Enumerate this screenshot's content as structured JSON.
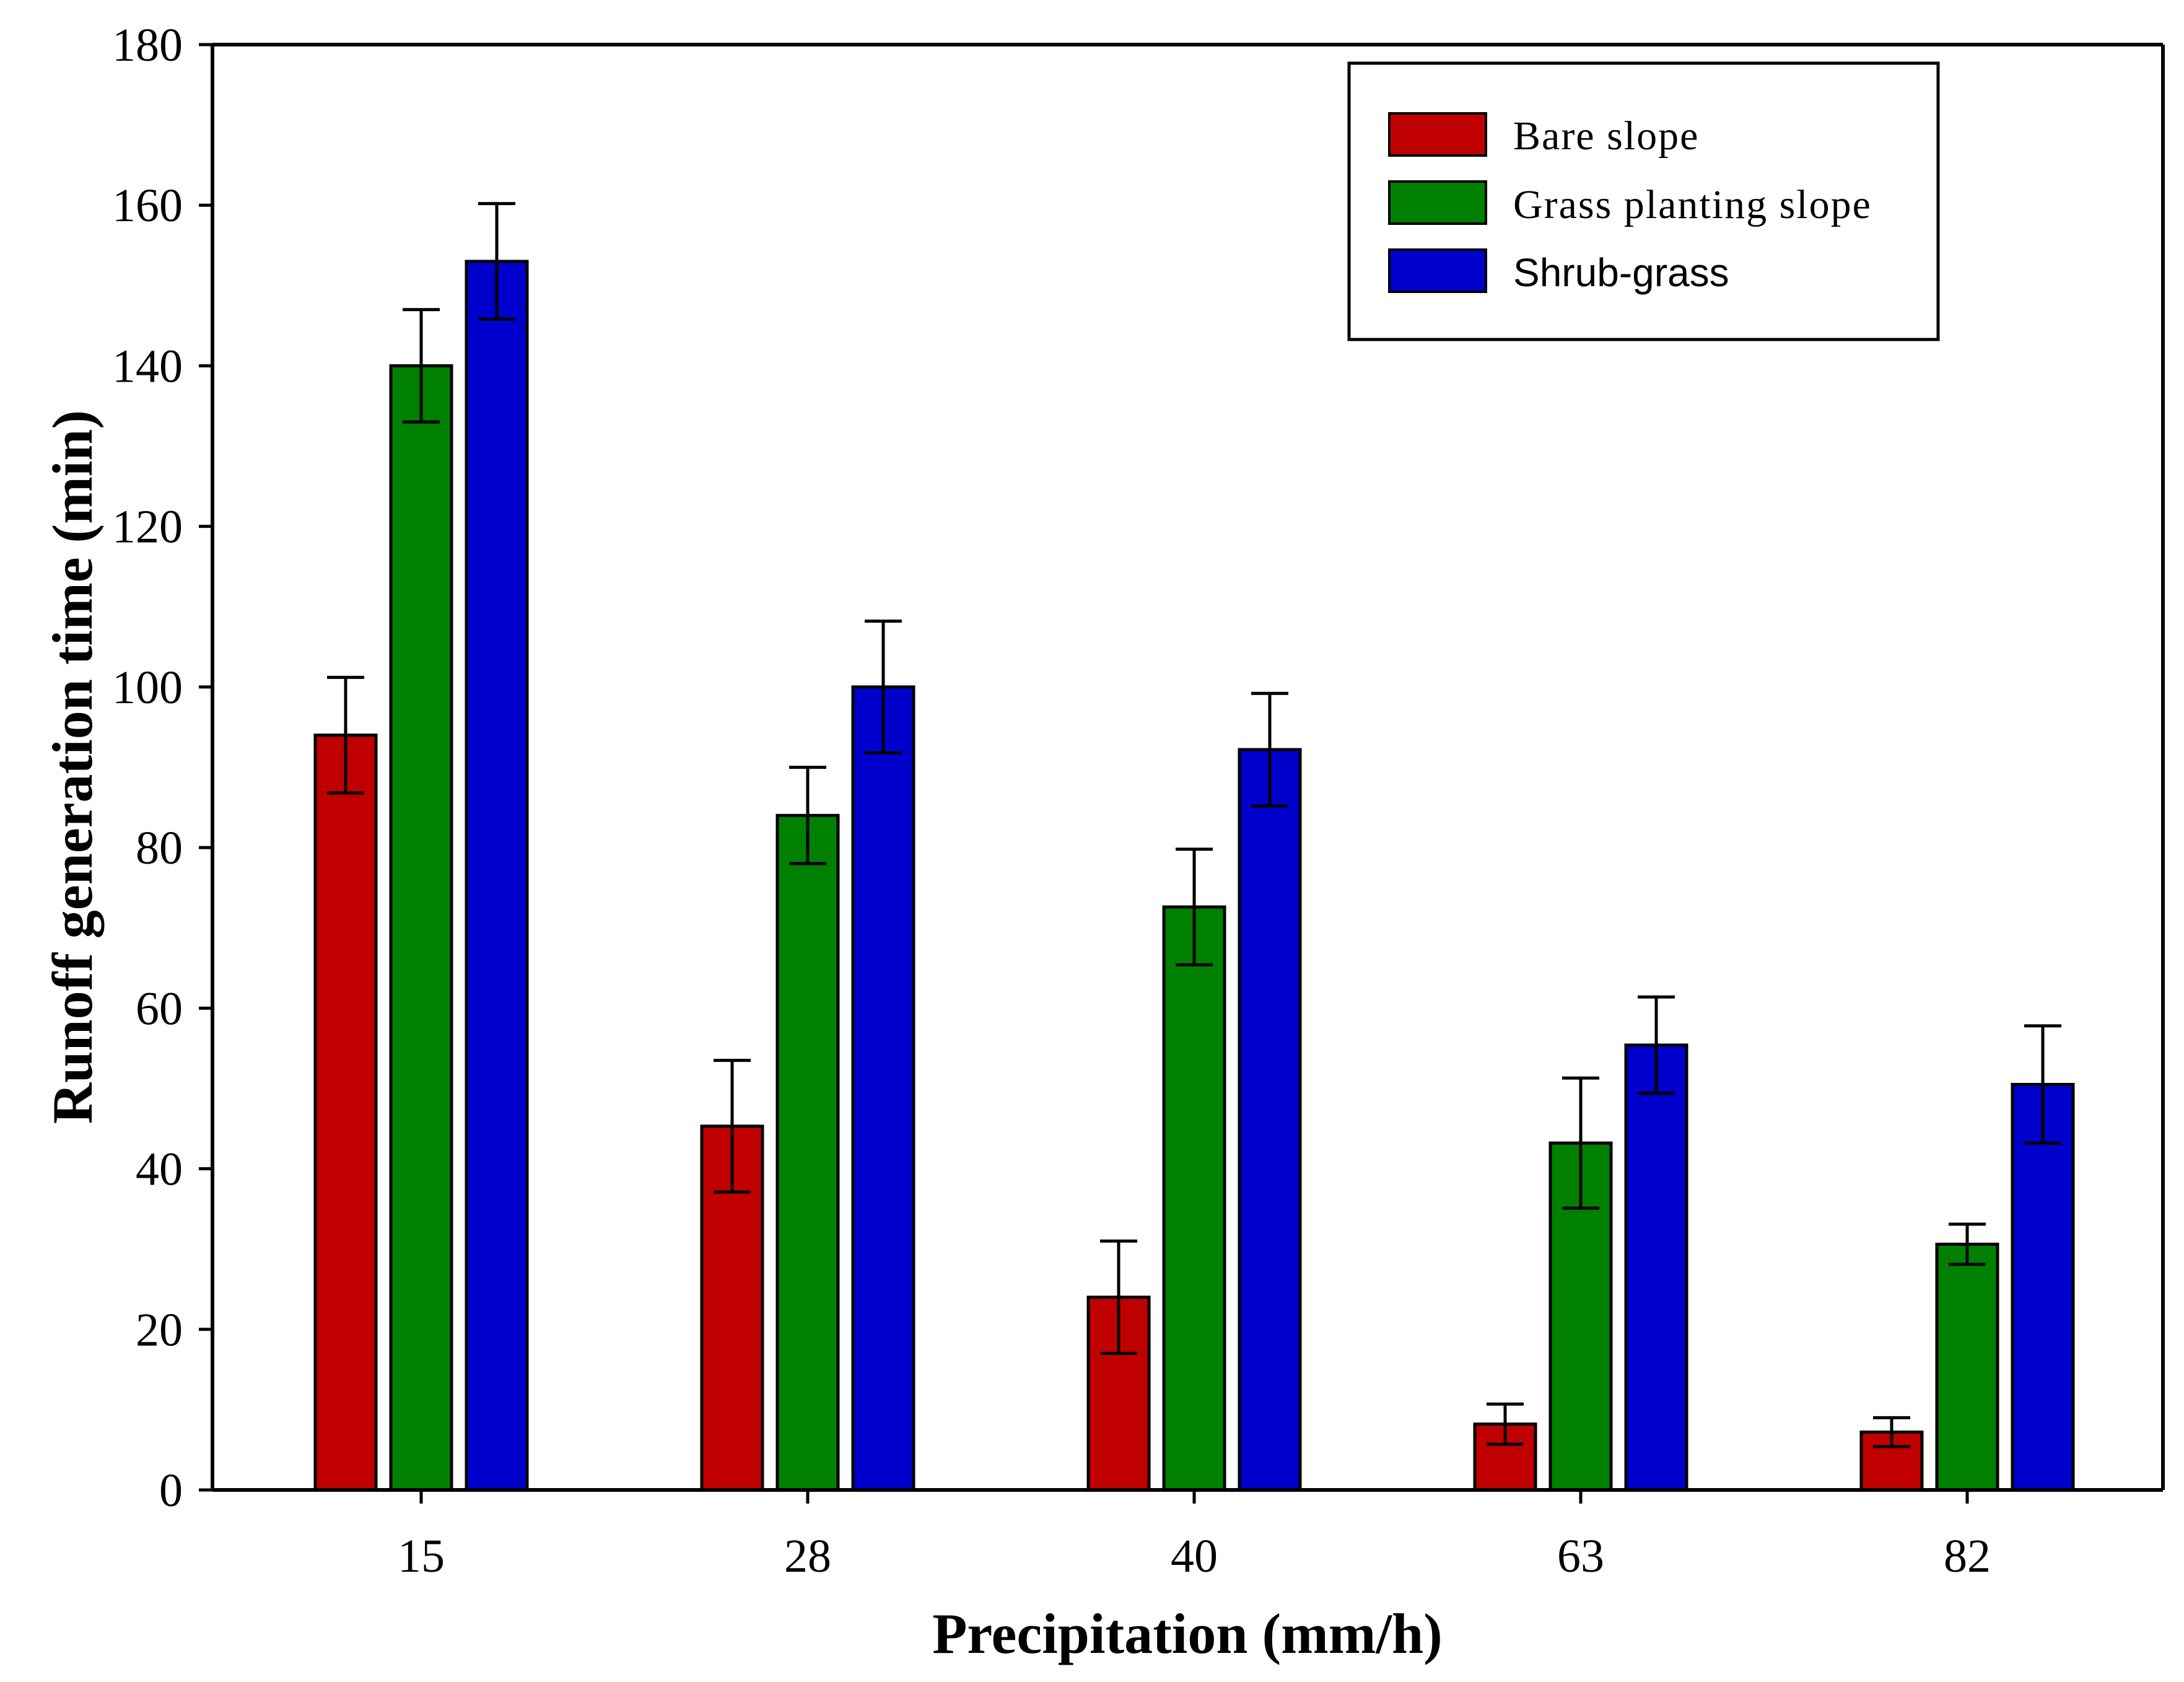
{
  "chart_data": {
    "type": "bar",
    "title": "",
    "xlabel": "Precipitation (mm/h)",
    "ylabel": "Runoff generation time (min)",
    "ylim": [
      0,
      180
    ],
    "yticks": [
      0,
      20,
      40,
      60,
      80,
      100,
      120,
      140,
      160,
      180
    ],
    "categories": [
      "15",
      "28",
      "40",
      "63",
      "82"
    ],
    "legend_position": "top-right",
    "series": [
      {
        "name": "Bare slope",
        "color": "#c00000",
        "values": [
          94,
          45.3,
          24,
          8.2,
          7.2
        ],
        "errors": [
          7.2,
          8.2,
          7,
          2.5,
          1.8
        ]
      },
      {
        "name": "Grass planting slope",
        "color": "#008000",
        "values": [
          140,
          84,
          72.6,
          43.2,
          30.6
        ],
        "errors": [
          7,
          6,
          7.2,
          8.1,
          2.5
        ]
      },
      {
        "name": "Shrub-grass",
        "color": "#0000cc",
        "values": [
          153,
          100,
          92.2,
          55.4,
          50.5
        ],
        "errors": [
          7.2,
          8.2,
          7,
          6,
          7.3
        ]
      }
    ]
  }
}
